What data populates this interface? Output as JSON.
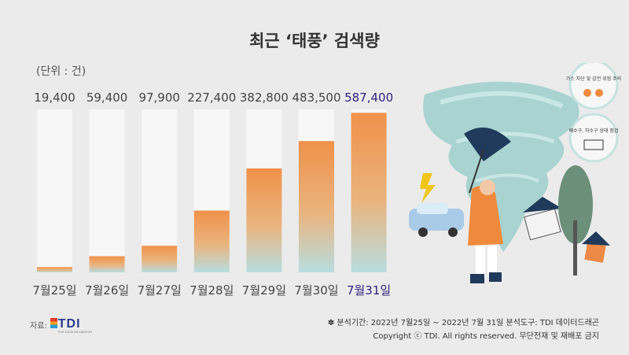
{
  "title": "최근 ‘태풍’ 검색량",
  "unit_label": "(단위 : 건)",
  "chart_data": {
    "type": "bar",
    "title": "최근 ‘태풍’ 검색량",
    "categories": [
      "7월25일",
      "7월26일",
      "7월27일",
      "7월28일",
      "7월29일",
      "7월30일",
      "7월31일"
    ],
    "values": [
      19400,
      59400,
      97900,
      227400,
      382800,
      483500,
      587400
    ],
    "value_labels": [
      "19,400",
      "59,400",
      "97,900",
      "227,400",
      "382,800",
      "483,500",
      "587,400"
    ],
    "ylim": [
      0,
      600000
    ],
    "highlight_index": 6,
    "colors": {
      "bar_top": "#f0914a",
      "bar_bottom": "#b8dde0",
      "track": "#f7f7f7",
      "highlight_text": "#2d1f7a"
    }
  },
  "source": {
    "label": "자료:",
    "logo_text": "TDI",
    "logo_tagline": "THE DATA INCUBATOR"
  },
  "footer": {
    "line1": "✽ 분석기간: 2022년 7월25일 ~ 2022년 7월 31일   분석도구: TDI 데이터드래곤",
    "line2": "Copyright ⓒ TDI. All rights reserved. 무단전재 및 재배포 금지"
  },
  "illustration": {
    "badge1_text": "가스 차단 및 감전 위험 주의",
    "badge2_text": "배수구, 하수구 상태 점검",
    "icons": [
      "tornado-icon",
      "umbrella-icon",
      "lightning-icon",
      "car-icon",
      "house-icon",
      "tree-icon",
      "person-raincoat-icon"
    ]
  }
}
